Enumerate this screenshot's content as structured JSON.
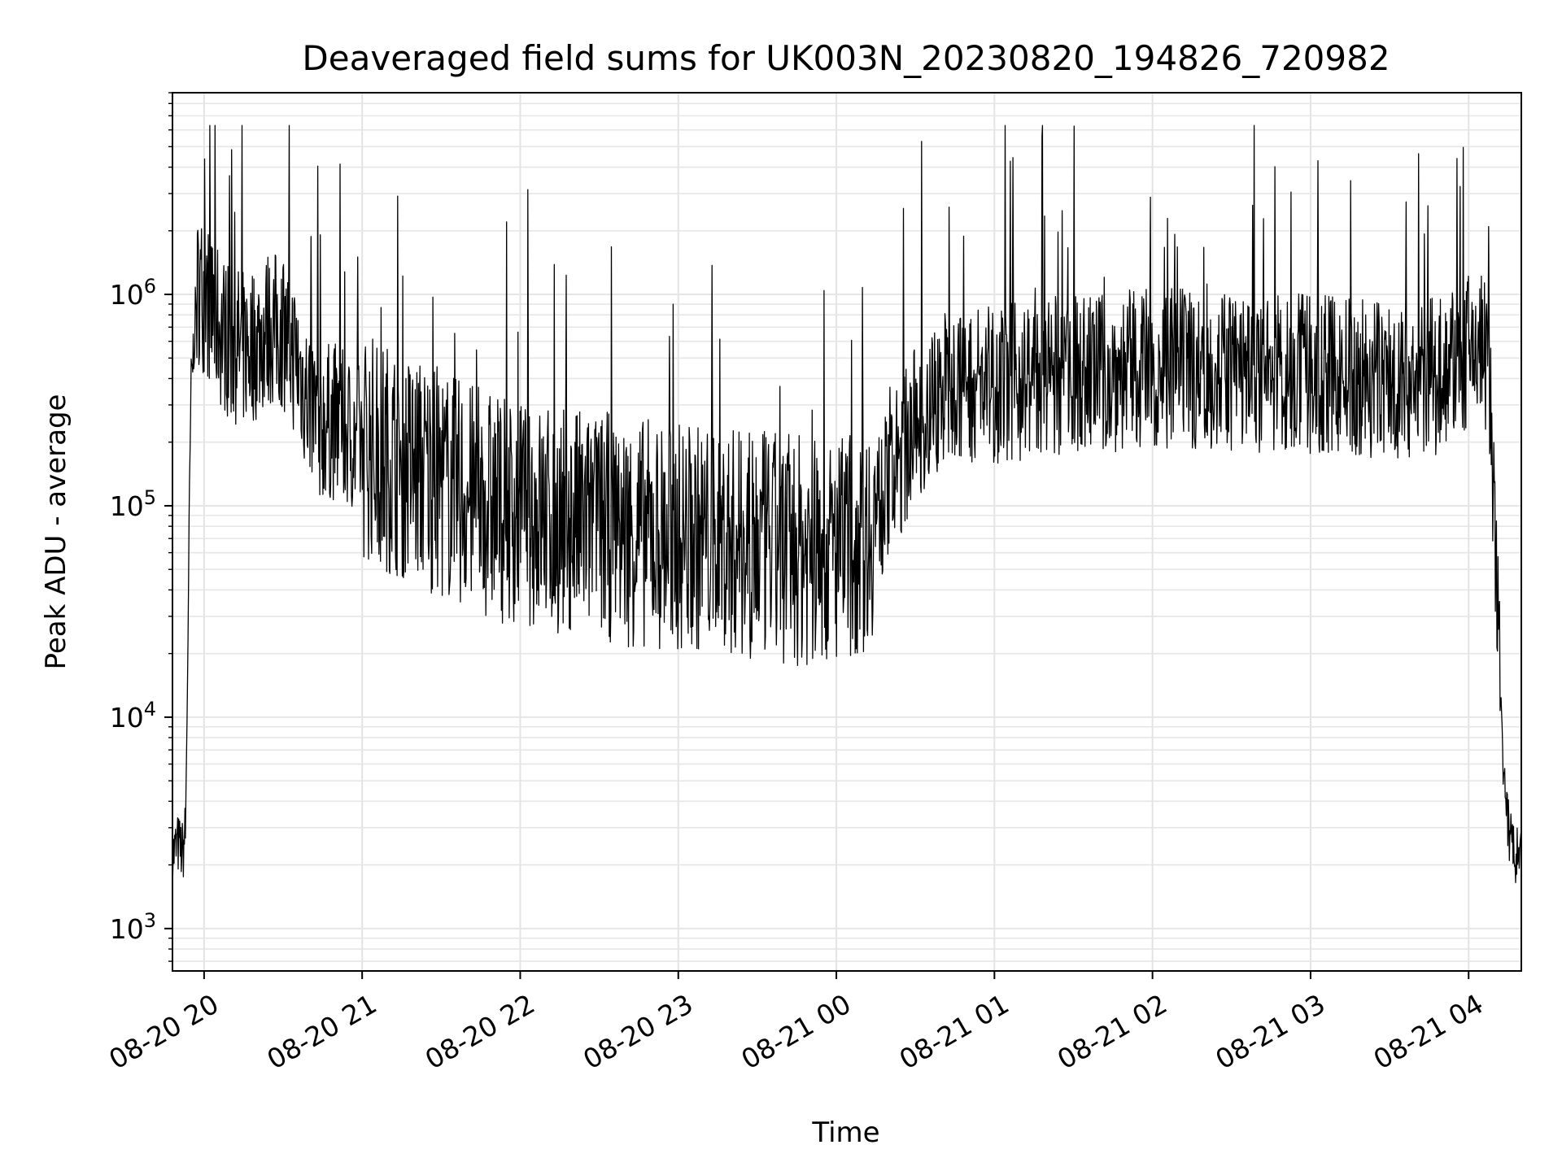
{
  "chart_data": {
    "type": "line",
    "title": "Deaveraged field sums for UK003N_20230820_194826_720982",
    "xlabel": "Time",
    "ylabel": "Peak ADU - average",
    "yscale": "log",
    "ylim": [
      630,
      9000000
    ],
    "xlim": [
      "08-20 19:48",
      "08-21 04:20"
    ],
    "grid": true,
    "line_color": "#000000",
    "x_ticks": [
      {
        "value": "08-20 20:00",
        "label": "08-20 20"
      },
      {
        "value": "08-20 21:00",
        "label": "08-20 21"
      },
      {
        "value": "08-20 22:00",
        "label": "08-20 22"
      },
      {
        "value": "08-20 23:00",
        "label": "08-20 23"
      },
      {
        "value": "08-21 00:00",
        "label": "08-21 00"
      },
      {
        "value": "08-21 01:00",
        "label": "08-21 01"
      },
      {
        "value": "08-21 02:00",
        "label": "08-21 02"
      },
      {
        "value": "08-21 03:00",
        "label": "08-21 03"
      },
      {
        "value": "08-21 04:00",
        "label": "08-21 04"
      }
    ],
    "y_ticks": [
      {
        "value": 1000,
        "base": "10",
        "exp": "3"
      },
      {
        "value": 10000,
        "base": "10",
        "exp": "4"
      },
      {
        "value": 100000,
        "base": "10",
        "exp": "5"
      },
      {
        "value": 1000000,
        "base": "10",
        "exp": "6"
      }
    ],
    "series": [
      {
        "x": [
          "08-20 19:48",
          "08-20 19:50",
          "08-20 19:52",
          "08-20 19:53",
          "08-20 19:55",
          "08-20 19:57",
          "08-20 19:58",
          "08-20 20:00",
          "08-20 20:02",
          "08-20 20:04",
          "08-20 20:06",
          "08-20 20:10",
          "08-20 20:15",
          "08-20 20:20",
          "08-20 20:25",
          "08-20 20:30",
          "08-20 20:35",
          "08-20 20:40",
          "08-20 20:45",
          "08-20 20:50",
          "08-20 20:55",
          "08-20 21:00",
          "08-20 21:10",
          "08-20 21:20",
          "08-20 21:30",
          "08-20 21:40",
          "08-20 21:50",
          "08-20 22:00",
          "08-20 22:15",
          "08-20 22:30",
          "08-20 22:45",
          "08-20 23:00",
          "08-20 23:15",
          "08-20 23:30",
          "08-20 23:45",
          "08-21 00:00",
          "08-21 00:10",
          "08-21 00:20",
          "08-21 00:30",
          "08-21 00:40",
          "08-21 00:50",
          "08-21 01:00",
          "08-21 01:15",
          "08-21 01:30",
          "08-21 01:45",
          "08-21 02:00",
          "08-21 02:15",
          "08-21 02:30",
          "08-21 02:45",
          "08-21 03:00",
          "08-21 03:15",
          "08-21 03:30",
          "08-21 03:45",
          "08-21 04:00",
          "08-21 04:05",
          "08-21 04:08",
          "08-21 04:10",
          "08-21 04:12",
          "08-21 04:14",
          "08-21 04:16",
          "08-21 04:18",
          "08-21 04:20"
        ],
        "y": [
          2200,
          2500,
          2300,
          3000,
          350000,
          900000,
          1100000,
          1000000,
          900000,
          800000,
          700000,
          600000,
          550000,
          600000,
          700000,
          650000,
          500000,
          300000,
          250000,
          250000,
          220000,
          200000,
          170000,
          150000,
          130000,
          110000,
          100000,
          95000,
          85000,
          80000,
          75000,
          72000,
          70000,
          65000,
          62000,
          60000,
          70000,
          120000,
          250000,
          350000,
          380000,
          380000,
          400000,
          420000,
          430000,
          450000,
          440000,
          430000,
          420000,
          420000,
          410000,
          400000,
          400000,
          520000,
          600000,
          400000,
          60000,
          15000,
          3500,
          2600,
          2200,
          2000
        ]
      }
    ]
  }
}
